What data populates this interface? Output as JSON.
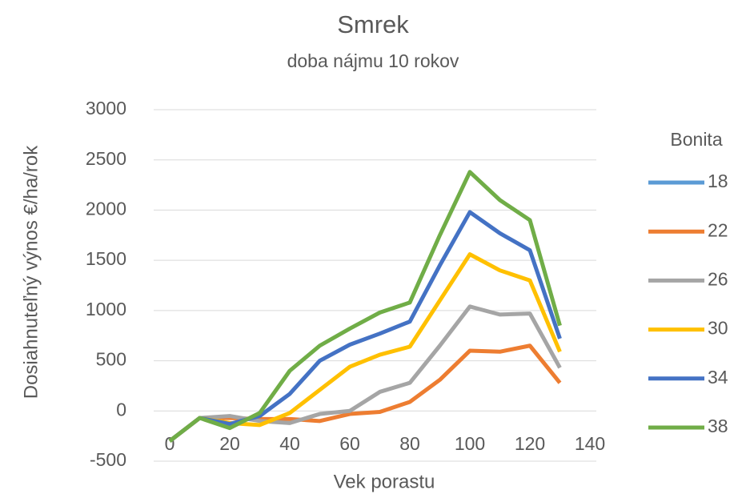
{
  "chart_data": {
    "type": "line",
    "title": "Smrek",
    "subtitle": "doba nájmu 10 rokov",
    "x_label": "Vek porastu",
    "y_label": "Dosiahnuteľný výnos €/ha/rok",
    "legend_title": "Bonita",
    "legend": "right",
    "grid": true,
    "x": [
      0,
      10,
      20,
      30,
      40,
      50,
      60,
      70,
      80,
      90,
      100,
      110,
      120,
      130
    ],
    "xlim": [
      0,
      140
    ],
    "xticks": [
      0,
      20,
      40,
      60,
      80,
      100,
      120,
      140
    ],
    "ylim": [
      -500,
      3000
    ],
    "yticks": [
      -500,
      0,
      500,
      1000,
      1500,
      2000,
      2500,
      3000
    ],
    "series": [
      {
        "name": "18",
        "color": "#5b9bd5",
        "values": [
          null,
          null,
          null,
          null,
          null,
          null,
          null,
          null,
          null,
          null,
          null,
          null,
          null,
          null
        ]
      },
      {
        "name": "22",
        "color": "#ed7d31",
        "values": [
          -300,
          -70,
          -70,
          -80,
          -80,
          -100,
          -30,
          -10,
          90,
          310,
          600,
          590,
          650,
          280
        ]
      },
      {
        "name": "26",
        "color": "#a5a5a5",
        "values": [
          -300,
          -70,
          -50,
          -100,
          -120,
          -30,
          0,
          190,
          280,
          650,
          1040,
          960,
          970,
          430
        ]
      },
      {
        "name": "30",
        "color": "#ffc000",
        "values": [
          -300,
          -70,
          -120,
          -140,
          -20,
          210,
          440,
          560,
          640,
          1100,
          1560,
          1400,
          1300,
          590
        ]
      },
      {
        "name": "34",
        "color": "#4472c4",
        "values": [
          -300,
          -70,
          -130,
          -50,
          170,
          500,
          660,
          770,
          890,
          1450,
          1980,
          1770,
          1600,
          720
        ]
      },
      {
        "name": "38",
        "color": "#70ad47",
        "values": [
          -300,
          -70,
          -170,
          -20,
          400,
          650,
          820,
          980,
          1080,
          1750,
          2380,
          2100,
          1900,
          850
        ]
      }
    ]
  }
}
